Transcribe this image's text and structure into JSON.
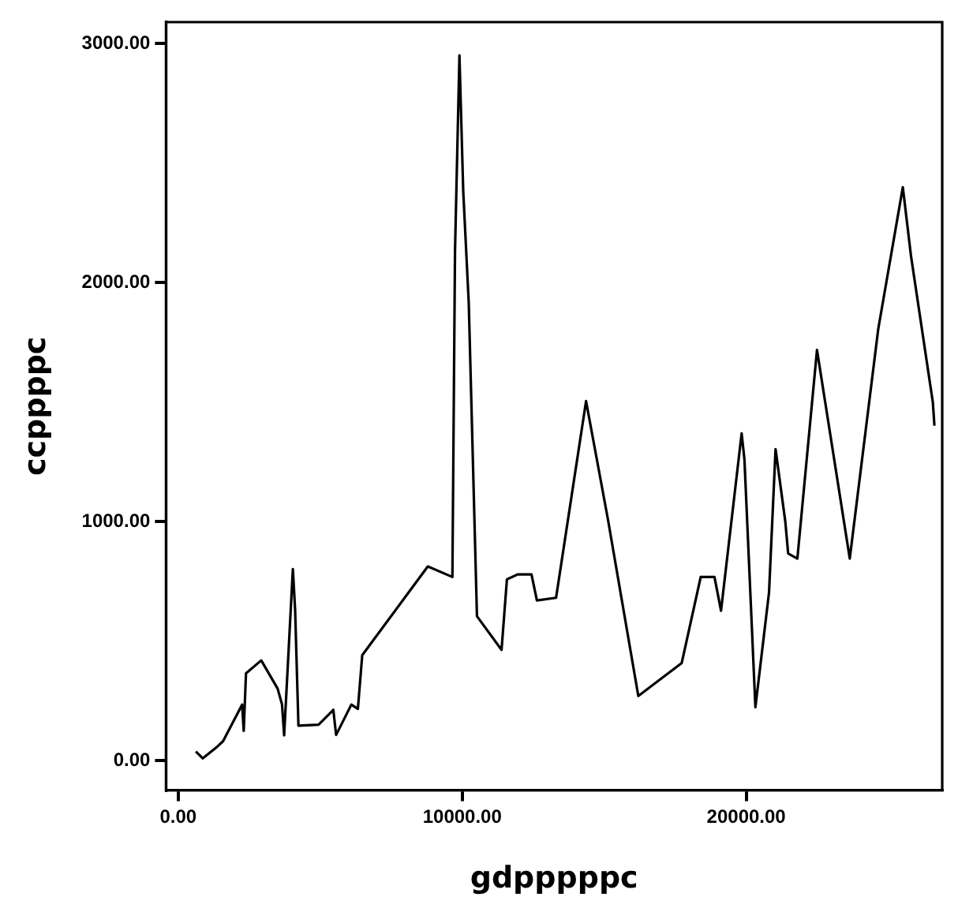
{
  "chart_data": {
    "type": "line",
    "xlabel": "gdpppppc",
    "ylabel": "ccppppc",
    "x": [
      620,
      865,
      1385,
      1580,
      2250,
      2307,
      2387,
      2924,
      3500,
      3655,
      3730,
      4037,
      4117,
      4233,
      4942,
      5461,
      5560,
      6096,
      6326,
      6480,
      8789,
      9654,
      9746,
      9902,
      10035,
      10230,
      10519,
      11384,
      11574,
      11960,
      12439,
      12630,
      13304,
      14360,
      15132,
      16200,
      16765,
      17728,
      18397,
      18881,
      19112,
      19838,
      19937,
      20322,
      20802,
      21032,
      21378,
      21476,
      21800,
      22491,
      23645,
      24648,
      25513,
      25801,
      26569,
      26626
    ],
    "series": [
      {
        "color": "#000000",
        "values": [
          38,
          9,
          59,
          81,
          234,
          124,
          365,
          419,
          301,
          235,
          105,
          801,
          629,
          146,
          150,
          212,
          107,
          234,
          216,
          441,
          812,
          768,
          2133,
          2951,
          2384,
          1914,
          604,
          463,
          758,
          779,
          779,
          670,
          681,
          1504,
          1008,
          270,
          321,
          408,
          768,
          768,
          627,
          1369,
          1259,
          223,
          703,
          1303,
          997,
          866,
          845,
          1718,
          845,
          1806,
          2399,
          2111,
          1500,
          1401
        ]
      }
    ],
    "xlim": [
      -430,
      26900
    ],
    "ylim": [
      -124,
      3090
    ],
    "xticks": [
      {
        "value": 0,
        "label": "0.00"
      },
      {
        "value": 10000,
        "label": "10000.00"
      },
      {
        "value": 20000,
        "label": "20000.00"
      }
    ],
    "yticks": [
      {
        "value": 0,
        "label": "0.00"
      },
      {
        "value": 1000,
        "label": "1000.00"
      },
      {
        "value": 2000,
        "label": "2000.00"
      },
      {
        "value": 3000,
        "label": "3000.00"
      }
    ],
    "grid": false,
    "legend": false,
    "marker": "none",
    "line_style": "solid"
  }
}
